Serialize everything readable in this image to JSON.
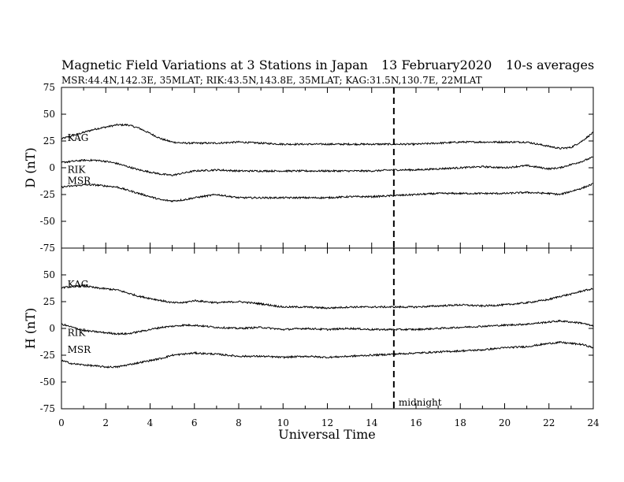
{
  "header": {
    "title": "Magnetic Field Variations at 3 Stations in Japan",
    "date": "13 February2020",
    "averaging": "10-s averages",
    "stations_line": "MSR:44.4N,142.3E, 35MLAT;  RIK:43.5N,143.8E, 35MLAT;  KAG:31.5N,130.7E, 22MLAT"
  },
  "chart_data": [
    {
      "type": "line",
      "panel": "top",
      "xlabel": "",
      "ylabel": "D (nT)",
      "xlim": [
        0,
        24
      ],
      "ylim": [
        -75,
        75
      ],
      "yticks": [
        75,
        50,
        25,
        0,
        -25,
        -50,
        -75
      ],
      "marker": {
        "x": 15,
        "style": "dashed"
      },
      "series": [
        {
          "name": "KAG",
          "label_x": 0.2,
          "label_y": 28,
          "x": [
            0,
            0.5,
            1,
            1.5,
            2,
            2.5,
            3,
            3.5,
            4,
            4.5,
            5,
            5.5,
            6,
            7,
            8,
            9,
            10,
            11,
            12,
            13,
            14,
            15,
            16,
            17,
            18,
            19,
            20,
            21,
            22,
            22.5,
            23,
            23.5,
            24
          ],
          "values": [
            27,
            30,
            33,
            36,
            38,
            40,
            40,
            37,
            32,
            27,
            24,
            23,
            23,
            23,
            24,
            23,
            22,
            22,
            22,
            22,
            22,
            22,
            22,
            23,
            24,
            24,
            24,
            24,
            20,
            18,
            19,
            25,
            33
          ]
        },
        {
          "name": "RIK",
          "label_x": 0.2,
          "label_y": -2,
          "x": [
            0,
            0.5,
            1,
            1.5,
            2,
            2.5,
            3,
            3.5,
            4,
            4.5,
            5,
            5.5,
            6,
            7,
            8,
            9,
            10,
            11,
            12,
            13,
            14,
            15,
            16,
            17,
            18,
            19,
            20,
            21,
            22,
            22.5,
            23,
            23.5,
            24
          ],
          "values": [
            5,
            6,
            7,
            7,
            6,
            4,
            1,
            -2,
            -4,
            -6,
            -7,
            -5,
            -3,
            -2,
            -3,
            -3,
            -3,
            -3,
            -3,
            -3,
            -3,
            -2,
            -2,
            -1,
            0,
            1,
            0,
            2,
            -1,
            0,
            3,
            6,
            10
          ]
        },
        {
          "name": "MSR",
          "label_x": 0.2,
          "label_y": -12,
          "x": [
            0,
            0.5,
            1,
            1.5,
            2,
            2.5,
            3,
            3.5,
            4,
            4.5,
            5,
            5.5,
            6,
            7,
            8,
            9,
            10,
            11,
            12,
            13,
            14,
            15,
            16,
            17,
            18,
            19,
            20,
            21,
            22,
            22.5,
            23,
            23.5,
            24
          ],
          "values": [
            -18,
            -17,
            -16,
            -16,
            -17,
            -18,
            -21,
            -24,
            -27,
            -30,
            -31,
            -30,
            -28,
            -25,
            -28,
            -28,
            -28,
            -28,
            -28,
            -27,
            -27,
            -26,
            -25,
            -24,
            -24,
            -24,
            -24,
            -23,
            -24,
            -25,
            -22,
            -19,
            -15
          ]
        }
      ]
    },
    {
      "type": "line",
      "panel": "bottom",
      "xlabel": "Universal Time",
      "ylabel": "H (nT)",
      "xlim": [
        0,
        24
      ],
      "xticks": [
        0,
        2,
        4,
        6,
        8,
        10,
        12,
        14,
        16,
        18,
        20,
        22,
        24
      ],
      "ylim": [
        -75,
        75
      ],
      "yticks": [
        50,
        25,
        0,
        -25,
        -50,
        -75
      ],
      "marker": {
        "x": 15,
        "style": "dashed",
        "label": "midnight"
      },
      "series": [
        {
          "name": "KAG",
          "label_x": 0.2,
          "label_y": 41,
          "x": [
            0,
            0.5,
            1,
            1.5,
            2,
            2.5,
            3,
            3.5,
            4,
            4.5,
            5,
            5.5,
            6,
            7,
            8,
            9,
            10,
            11,
            12,
            13,
            14,
            15,
            16,
            17,
            18,
            19,
            20,
            21,
            22,
            22.5,
            23,
            23.5,
            24
          ],
          "values": [
            38,
            39,
            40,
            38,
            37,
            36,
            33,
            30,
            28,
            26,
            24,
            24,
            26,
            24,
            25,
            23,
            20,
            20,
            19,
            20,
            20,
            20,
            20,
            21,
            22,
            21,
            22,
            24,
            27,
            30,
            32,
            35,
            37
          ]
        },
        {
          "name": "RIK",
          "label_x": 0.2,
          "label_y": -4,
          "x": [
            0,
            0.5,
            1,
            1.5,
            2,
            2.5,
            3,
            3.5,
            4,
            4.5,
            5,
            5.5,
            6,
            7,
            8,
            9,
            10,
            11,
            12,
            13,
            14,
            15,
            16,
            17,
            18,
            19,
            20,
            21,
            22,
            22.5,
            23,
            23.5,
            24
          ],
          "values": [
            4,
            1,
            -2,
            -3,
            -4,
            -5,
            -5,
            -3,
            -1,
            1,
            2,
            3,
            3,
            1,
            0,
            1,
            -1,
            0,
            -1,
            0,
            -1,
            -1,
            -1,
            0,
            1,
            2,
            3,
            4,
            6,
            7,
            6,
            5,
            2
          ]
        },
        {
          "name": "MSR",
          "label_x": 0.2,
          "label_y": -20,
          "x": [
            0,
            0.5,
            1,
            1.5,
            2,
            2.5,
            3,
            3.5,
            4,
            4.5,
            5,
            5.5,
            6,
            7,
            8,
            9,
            10,
            11,
            12,
            13,
            14,
            15,
            16,
            17,
            18,
            19,
            20,
            21,
            22,
            22.5,
            23,
            23.5,
            24
          ],
          "values": [
            -30,
            -33,
            -34,
            -35,
            -36,
            -36,
            -34,
            -32,
            -30,
            -28,
            -25,
            -24,
            -23,
            -24,
            -26,
            -26,
            -27,
            -26,
            -27,
            -26,
            -25,
            -24,
            -23,
            -22,
            -21,
            -20,
            -18,
            -17,
            -14,
            -13,
            -14,
            -15,
            -18
          ]
        }
      ]
    }
  ]
}
